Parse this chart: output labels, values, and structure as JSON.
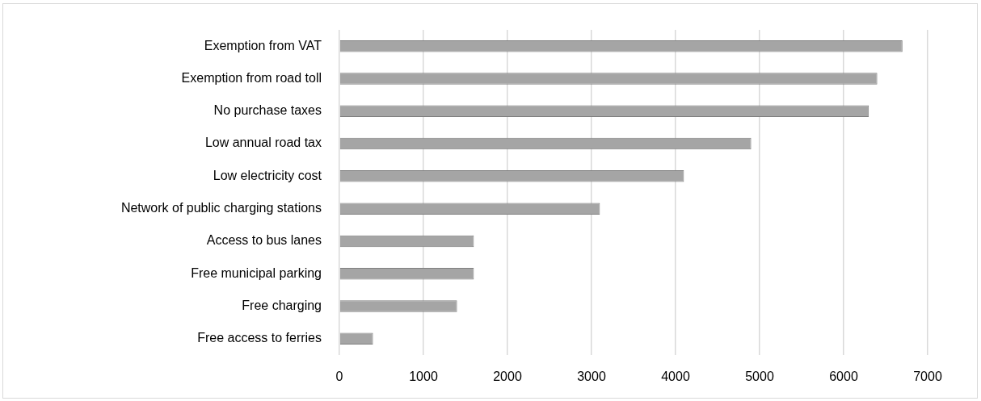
{
  "chart_data": {
    "type": "bar",
    "orientation": "horizontal",
    "categories": [
      "Exemption from VAT",
      "Exemption from road toll",
      "No purchase taxes",
      "Low annual road tax",
      "Low electricity cost",
      "Network of public charging stations",
      "Access to bus lanes",
      "Free municipal parking",
      "Free charging",
      "Free access to ferries"
    ],
    "values": [
      6700,
      6400,
      6300,
      4900,
      4100,
      3100,
      1600,
      1600,
      1400,
      400
    ],
    "color": "#a5a5a5",
    "xlim": [
      0,
      7000
    ],
    "xticks": [
      0,
      1000,
      2000,
      3000,
      4000,
      5000,
      6000,
      7000
    ],
    "grid": "x",
    "legend": false
  }
}
